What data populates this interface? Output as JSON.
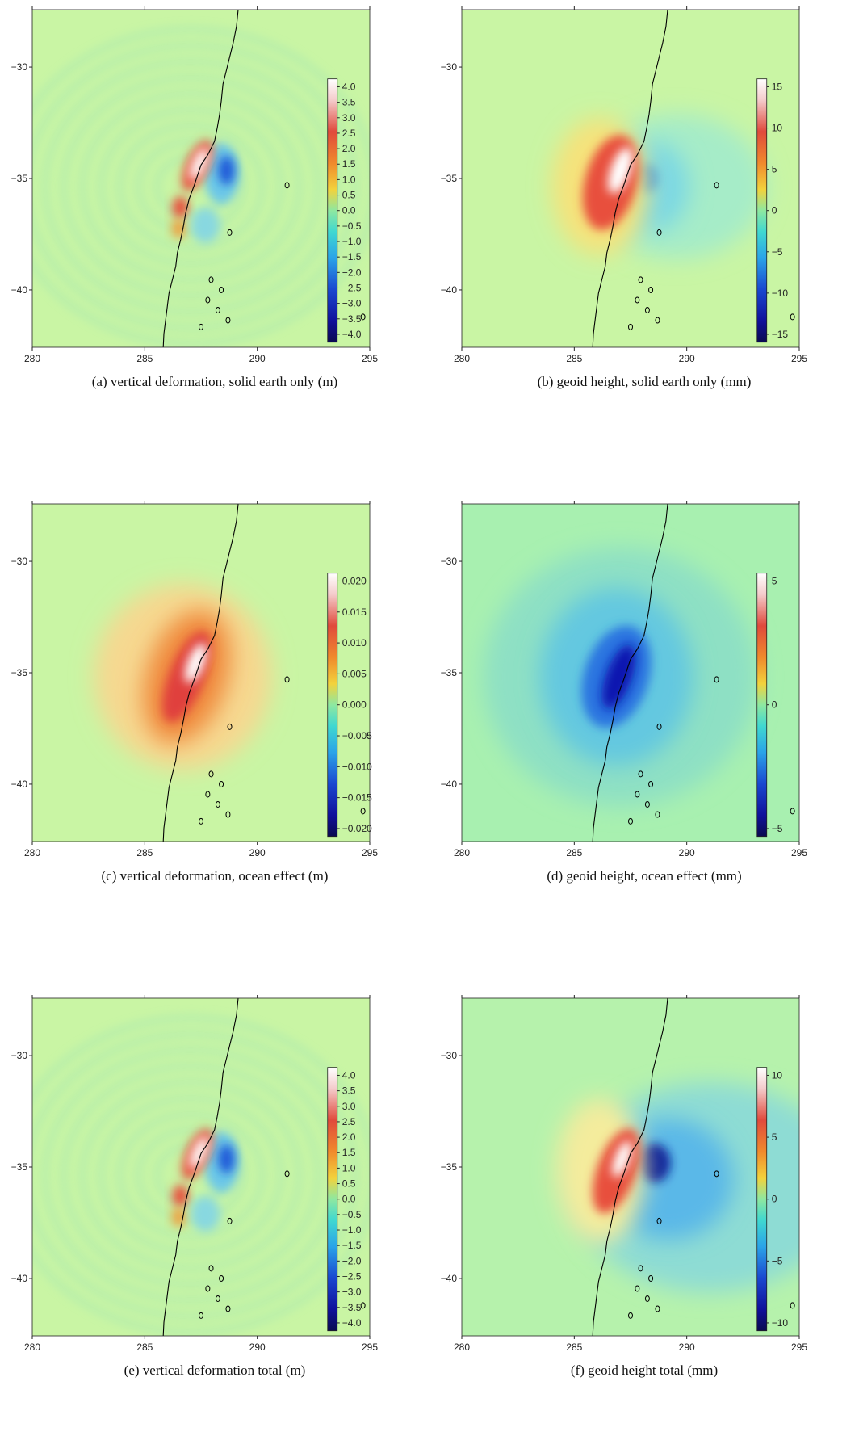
{
  "figure": {
    "x_ticks": [
      "280",
      "285",
      "290",
      "295"
    ],
    "y_ticks": [
      "−30",
      "−35",
      "−40"
    ],
    "panels": [
      {
        "id": "a",
        "caption": "(a)  vertical deformation, solid earth only (m)",
        "colorbar_labels": [
          "4.0",
          "3.5",
          "3.0",
          "2.5",
          "2.0",
          "1.5",
          "1.0",
          "0.5",
          "0.0",
          "−0.5",
          "−1.0",
          "−1.5",
          "−2.0",
          "−2.5",
          "−3.0",
          "−3.5",
          "−4.0"
        ],
        "pattern": "deformation"
      },
      {
        "id": "b",
        "caption": "(b)  geoid height, solid earth only (mm)",
        "colorbar_labels": [
          "15",
          "10",
          "5",
          "0",
          "−5",
          "−10",
          "−15"
        ],
        "pattern": "geoid_solid"
      },
      {
        "id": "c",
        "caption": "(c)  vertical deformation, ocean effect (m)",
        "colorbar_labels": [
          "0.020",
          "0.015",
          "0.010",
          "0.005",
          "0.000",
          "−0.005",
          "−0.010",
          "−0.015",
          "−0.020"
        ],
        "pattern": "ocean_def"
      },
      {
        "id": "d",
        "caption": "(d)  geoid height, ocean effect (mm)",
        "colorbar_labels": [
          "5",
          "0",
          "−5"
        ],
        "pattern": "ocean_geoid"
      },
      {
        "id": "e",
        "caption": "(e)  vertical deformation total (m)",
        "colorbar_labels": [
          "4.0",
          "3.5",
          "3.0",
          "2.5",
          "2.0",
          "1.5",
          "1.0",
          "0.5",
          "0.0",
          "−0.5",
          "−1.0",
          "−1.5",
          "−2.0",
          "−2.5",
          "−3.0",
          "−3.5",
          "−4.0"
        ],
        "pattern": "deformation"
      },
      {
        "id": "f",
        "caption": "(f)  geoid height total (mm)",
        "colorbar_labels": [
          "10",
          "5",
          "0",
          "−5",
          "−10"
        ],
        "pattern": "geoid_total"
      }
    ],
    "colors": {
      "background_field": "#c9f5a4",
      "ocean_geoid_background": "#a8f0b0",
      "coast": "#000000"
    }
  }
}
